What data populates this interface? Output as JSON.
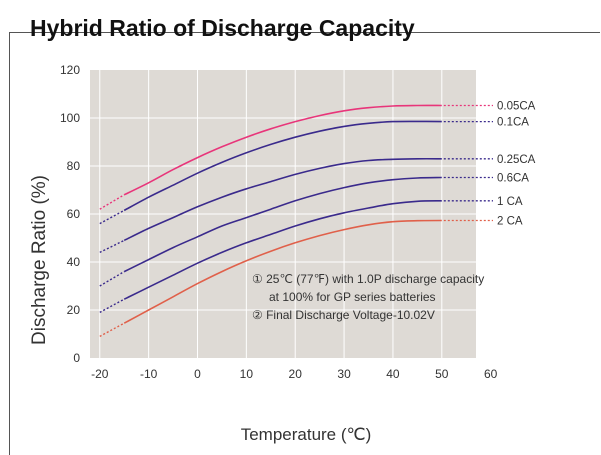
{
  "header": {
    "partial_title": "Hybrid Ratio of Discharge Capacity"
  },
  "chart_data": {
    "type": "line",
    "title": "",
    "xlabel": "Temperature (℃)",
    "ylabel": "Discharge Ratio (%)",
    "xlim": [
      -20,
      60
    ],
    "ylim": [
      0,
      120
    ],
    "plot_xlim": [
      -22,
      57
    ],
    "x_ticks": [
      -20,
      -10,
      0,
      10,
      20,
      30,
      40,
      50,
      60
    ],
    "y_ticks": [
      0,
      20,
      40,
      60,
      80,
      100,
      120
    ],
    "grid": true,
    "series": [
      {
        "name": "0.05CA",
        "color": "#e8357a",
        "x": [
          -20,
          -15,
          -10,
          -5,
          0,
          5,
          10,
          15,
          20,
          25,
          30,
          35,
          40,
          45,
          50
        ],
        "y": [
          62,
          68,
          73,
          78.5,
          83.5,
          88,
          92,
          95.5,
          98.5,
          101,
          103,
          104.3,
          105,
          105.2,
          105.2
        ]
      },
      {
        "name": "0.1CA",
        "color": "#3a2a8c",
        "x": [
          -20,
          -15,
          -10,
          -5,
          0,
          5,
          10,
          15,
          20,
          25,
          30,
          35,
          40,
          45,
          50
        ],
        "y": [
          56,
          61.5,
          67,
          72,
          77,
          81.5,
          85.5,
          89,
          92,
          94.5,
          96.5,
          97.8,
          98.5,
          98.6,
          98.5
        ]
      },
      {
        "name": "0.25CA",
        "color": "#3a2a8c",
        "x": [
          -20,
          -15,
          -10,
          -5,
          0,
          5,
          10,
          15,
          20,
          25,
          30,
          35,
          40,
          45,
          50
        ],
        "y": [
          44,
          49,
          54,
          58.5,
          63,
          67,
          70.5,
          73.5,
          76.5,
          79,
          81,
          82.3,
          82.8,
          83,
          83
        ]
      },
      {
        "name": "0.6CA",
        "color": "#3a2a8c",
        "x": [
          -20,
          -15,
          -10,
          -5,
          0,
          5,
          10,
          15,
          20,
          25,
          30,
          35,
          40,
          45,
          50
        ],
        "y": [
          30,
          36,
          41,
          46,
          50.5,
          55,
          58.5,
          62,
          65.5,
          68.5,
          71,
          73,
          74.3,
          75,
          75.2
        ]
      },
      {
        "name": "1 CA",
        "color": "#3a2a8c",
        "x": [
          -20,
          -15,
          -10,
          -5,
          0,
          5,
          10,
          15,
          20,
          25,
          30,
          35,
          40,
          45,
          50
        ],
        "y": [
          19,
          24.5,
          29.5,
          34.5,
          39.5,
          44,
          48,
          51.5,
          55,
          58,
          60.5,
          62.5,
          64.3,
          65.3,
          65.5
        ]
      },
      {
        "name": "2 CA",
        "color": "#e0604a",
        "x": [
          -20,
          -15,
          -10,
          -5,
          0,
          5,
          10,
          15,
          20,
          25,
          30,
          35,
          40,
          45,
          50
        ],
        "y": [
          9,
          14.5,
          20,
          25.5,
          31,
          36,
          40.5,
          44.5,
          48,
          51,
          53.5,
          55.5,
          56.8,
          57.2,
          57.3
        ]
      }
    ],
    "annotations": [
      "① 25℃ (77℉)  with 1.0P discharge capacity",
      "at 100% for GP series batteries",
      "② Final Discharge Voltage-10.02V"
    ]
  },
  "style": {
    "plot_bg": "#dedad5",
    "grid": "#ffffff",
    "text": "#333333"
  }
}
